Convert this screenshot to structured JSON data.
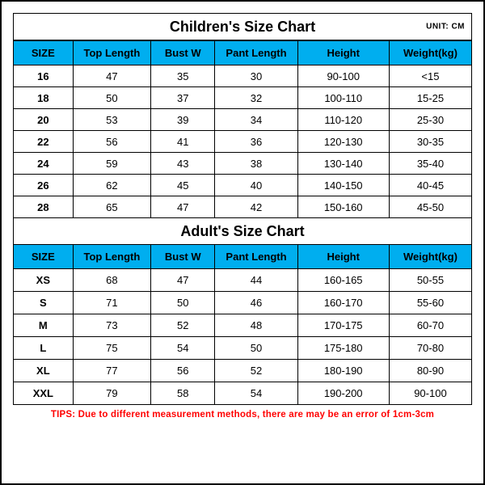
{
  "colors": {
    "header_bg": "#00aeef",
    "border": "#000000",
    "text": "#000000",
    "tips": "#ff0000",
    "background": "#ffffff"
  },
  "unit_label": "UNIT: CM",
  "children": {
    "title": "Children's Size Chart",
    "columns": [
      "SIZE",
      "Top Length",
      "Bust W",
      "Pant Length",
      "Height",
      "Weight(kg)"
    ],
    "rows": [
      [
        "16",
        "47",
        "35",
        "30",
        "90-100",
        "<15"
      ],
      [
        "18",
        "50",
        "37",
        "32",
        "100-110",
        "15-25"
      ],
      [
        "20",
        "53",
        "39",
        "34",
        "110-120",
        "25-30"
      ],
      [
        "22",
        "56",
        "41",
        "36",
        "120-130",
        "30-35"
      ],
      [
        "24",
        "59",
        "43",
        "38",
        "130-140",
        "35-40"
      ],
      [
        "26",
        "62",
        "45",
        "40",
        "140-150",
        "40-45"
      ],
      [
        "28",
        "65",
        "47",
        "42",
        "150-160",
        "45-50"
      ]
    ]
  },
  "adult": {
    "title": "Adult's Size Chart",
    "columns": [
      "SIZE",
      "Top Length",
      "Bust W",
      "Pant Length",
      "Height",
      "Weight(kg)"
    ],
    "rows": [
      [
        "XS",
        "68",
        "47",
        "44",
        "160-165",
        "50-55"
      ],
      [
        "S",
        "71",
        "50",
        "46",
        "160-170",
        "55-60"
      ],
      [
        "M",
        "73",
        "52",
        "48",
        "170-175",
        "60-70"
      ],
      [
        "L",
        "75",
        "54",
        "50",
        "175-180",
        "70-80"
      ],
      [
        "XL",
        "77",
        "56",
        "52",
        "180-190",
        "80-90"
      ],
      [
        "XXL",
        "79",
        "58",
        "54",
        "190-200",
        "90-100"
      ]
    ]
  },
  "tips": "TIPS: Due to different measurement methods, there are may be an error of 1cm-3cm"
}
